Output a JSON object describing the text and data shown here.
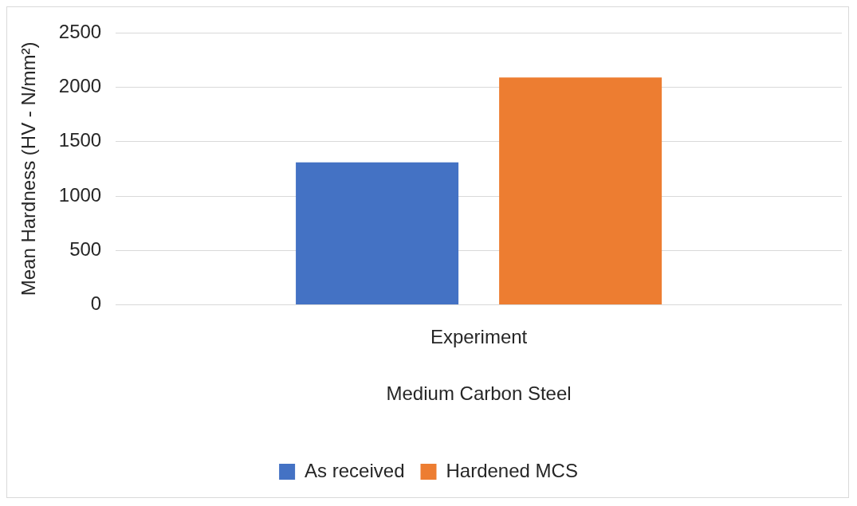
{
  "chart_data": {
    "type": "bar",
    "xlabel": "Medium Carbon Steel",
    "ylabel": "Mean Hardness (HV - N/mm²)",
    "categories": [
      "Experiment"
    ],
    "series": [
      {
        "name": "As received",
        "color": "#4472c4",
        "values": [
          1310
        ]
      },
      {
        "name": "Hardened MCS",
        "color": "#ed7d31",
        "values": [
          2090
        ]
      }
    ],
    "ylim": [
      0,
      2500
    ],
    "yticks": [
      0,
      500,
      1000,
      1500,
      2000,
      2500
    ],
    "grid": "y",
    "legend": "bottom"
  }
}
